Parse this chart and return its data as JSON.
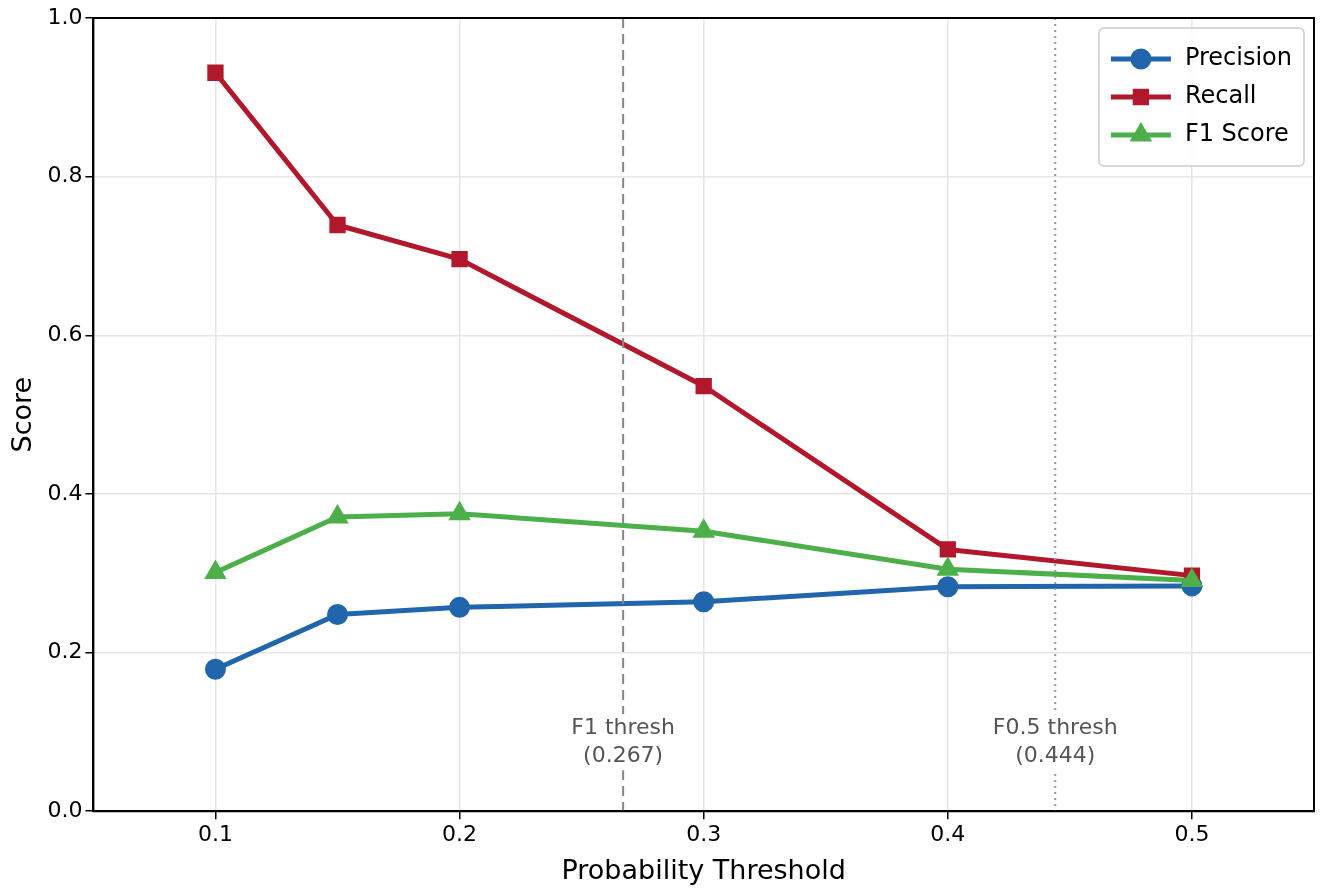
{
  "chart_data": {
    "type": "line",
    "xlabel": "Probability Threshold",
    "ylabel": "Score",
    "x": [
      0.1,
      0.15,
      0.2,
      0.3,
      0.4,
      0.5
    ],
    "series": [
      {
        "name": "Precision",
        "color": "#2166ac",
        "marker": "circle",
        "values": [
          0.179,
          0.248,
          0.257,
          0.264,
          0.283,
          0.284
        ]
      },
      {
        "name": "Recall",
        "color": "#b2182b",
        "marker": "square",
        "values": [
          0.931,
          0.739,
          0.696,
          0.536,
          0.33,
          0.297
        ]
      },
      {
        "name": "F1 Score",
        "color": "#4daf4a",
        "marker": "triangle",
        "values": [
          0.301,
          0.371,
          0.375,
          0.353,
          0.305,
          0.291
        ]
      }
    ],
    "xlim": [
      0.05,
      0.55
    ],
    "xticks": [
      0.1,
      0.2,
      0.3,
      0.4,
      0.5
    ],
    "ylim": [
      0,
      1
    ],
    "yticks": [
      {
        "value": 0,
        "label": "0.0"
      },
      0.2,
      0.4,
      0.6,
      0.8,
      {
        "value": 1,
        "label": "1.0"
      }
    ],
    "ref_lines": [
      {
        "axis": "x",
        "value": 0.267,
        "label": "F1 thresh\n(0.267)",
        "color": "#888888",
        "line_style": "dashed"
      },
      {
        "axis": "x",
        "value": 0.444,
        "label": "F0.5 thresh\n(0.444)",
        "color": "#999999",
        "line_style": "dotted"
      }
    ],
    "grid": true,
    "legend": "top right",
    "line_style": "solid"
  }
}
